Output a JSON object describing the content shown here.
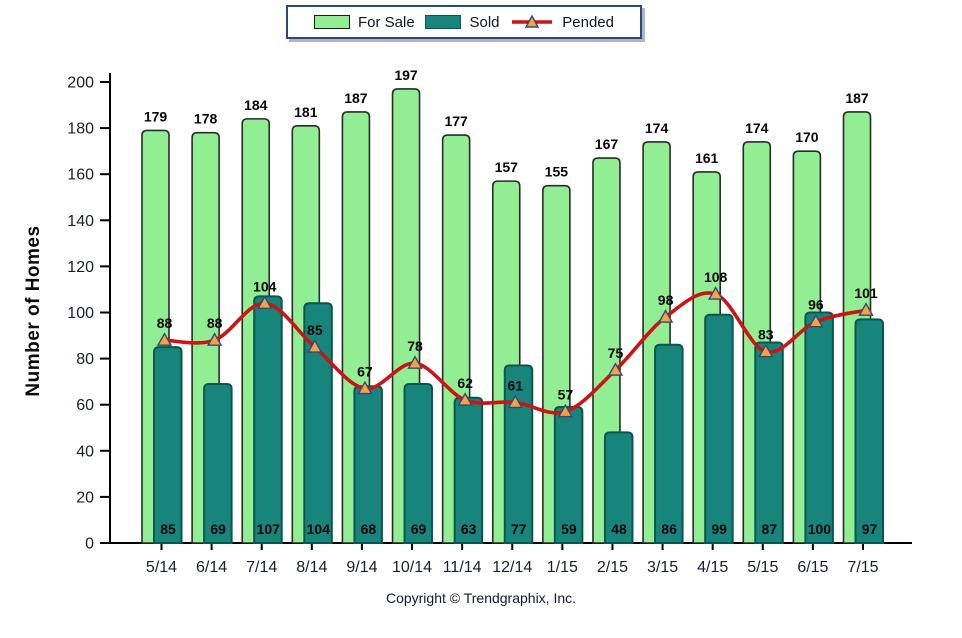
{
  "legend": {
    "for_sale": "For Sale",
    "sold": "Sold",
    "pended": "Pended"
  },
  "y_axis_title": "Number of Homes",
  "footer": {
    "copyright": "Copyright © Trendgraphix, Inc."
  },
  "colors": {
    "for_sale_fill": "#92EE92",
    "for_sale_stroke": "#2a2a2a",
    "sold_fill": "#17857C",
    "sold_stroke": "#0A564F",
    "pended_line": "#CC1414",
    "marker_fill": "#F6A23E",
    "marker_stroke": "#33497E",
    "axis": "#000000",
    "value_label": "#060608",
    "tick_label": "#1A1D33",
    "legend_border": "#2B4A7C"
  },
  "chart_data": {
    "type": "bar",
    "title": "",
    "xlabel": "",
    "ylabel": "Number of Homes",
    "ylim": [
      0,
      200
    ],
    "yticks": [
      0,
      20,
      40,
      60,
      80,
      100,
      120,
      140,
      160,
      180,
      200
    ],
    "grid": false,
    "legend_position": "top",
    "categories": [
      "5/14",
      "6/14",
      "7/14",
      "8/14",
      "9/14",
      "10/14",
      "11/14",
      "12/14",
      "1/15",
      "2/15",
      "3/15",
      "4/15",
      "5/15",
      "6/15",
      "7/15"
    ],
    "series": [
      {
        "name": "For Sale",
        "type": "bar",
        "values": [
          179,
          178,
          184,
          181,
          187,
          197,
          177,
          157,
          155,
          167,
          174,
          161,
          174,
          170,
          187
        ]
      },
      {
        "name": "Sold",
        "type": "bar",
        "values": [
          85,
          69,
          107,
          104,
          68,
          69,
          63,
          77,
          59,
          48,
          86,
          99,
          87,
          100,
          97
        ]
      },
      {
        "name": "Pended",
        "type": "line",
        "values": [
          88,
          88,
          104,
          85,
          67,
          78,
          62,
          61,
          57,
          75,
          98,
          108,
          83,
          96,
          101
        ]
      }
    ]
  }
}
